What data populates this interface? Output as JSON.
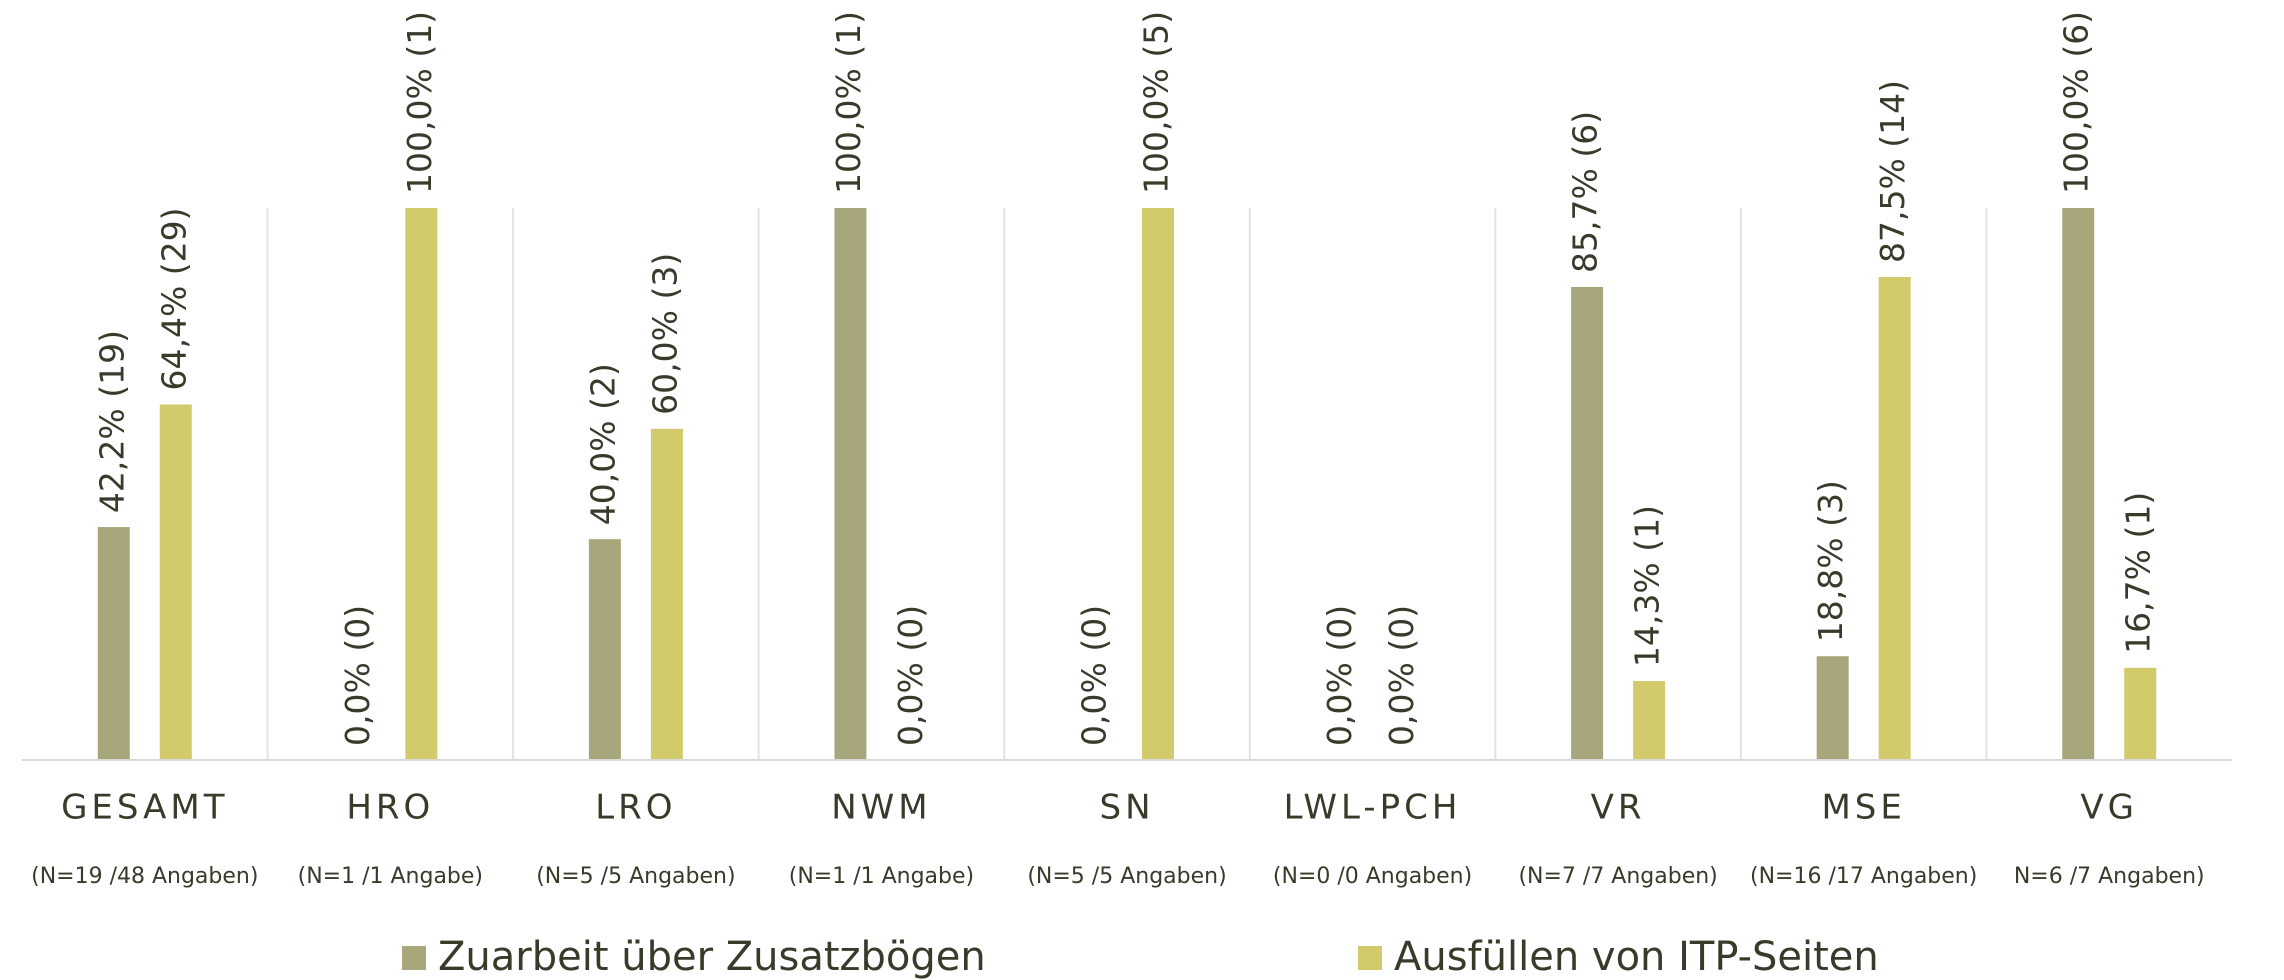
{
  "chart_data": {
    "type": "bar",
    "categories": [
      "GESAMT",
      "HRO",
      "LRO",
      "NWM",
      "SN",
      "LWL-PCH",
      "VR",
      "MSE",
      "VG"
    ],
    "category_notes": [
      "(N=19 /48 Angaben)",
      "(N=1 /1 Angabe)",
      "(N=5 /5 Angaben)",
      "(N=1 /1 Angabe)",
      "(N=5 /5 Angaben)",
      "(N=0 /0 Angaben)",
      "(N=7 /7 Angaben)",
      "(N=16 /17 Angaben)",
      "N=6 /7 Angaben)"
    ],
    "ylim": [
      0,
      100
    ],
    "grid": false,
    "legend": "bottom",
    "series": [
      {
        "name": "Zuarbeit über Zusatzbögen",
        "color": "#a8a77c",
        "values": [
          42.2,
          0,
          40,
          100,
          0,
          0,
          85.7,
          18.8,
          100
        ],
        "value_labels": [
          "42,2% (19)",
          "0,0% (0)",
          "40,0% (2)",
          "100,0% (1)",
          "0,0% (0)",
          "0,0% (0)",
          "85,7% (6)",
          "18,8% (3)",
          "100,0% (6)"
        ]
      },
      {
        "name": "Ausfüllen von ITP-Seiten",
        "color": "#d2cb6c",
        "values": [
          64.4,
          100,
          60,
          0,
          100,
          0,
          14.3,
          87.5,
          16.7
        ],
        "value_labels": [
          "64,4% (29)",
          "100,0% (1)",
          "60,0% (3)",
          "0,0% (0)",
          "100,0% (5)",
          "0,0% (0)",
          "14,3% (1)",
          "87,5% (14)",
          "16,7% (1)"
        ]
      }
    ]
  }
}
